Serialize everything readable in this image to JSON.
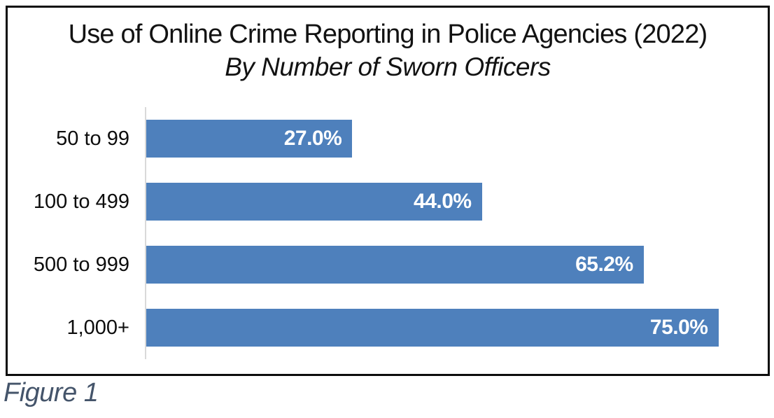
{
  "figure": {
    "caption": "Figure 1"
  },
  "colors": {
    "bar": "#4e80bc",
    "bar_label": "#ffffff",
    "axis_line": "#d9d9d9",
    "frame_border": "#0d0d0d",
    "caption_text": "#44546a",
    "title_text": "#121212"
  },
  "chart_data": {
    "type": "bar",
    "orientation": "horizontal",
    "title": "Use of Online Crime Reporting in Police Agencies (2022)",
    "subtitle": "By Number of Sworn Officers",
    "categories": [
      "50 to 99",
      "100 to 499",
      "500 to 999",
      "1,000+"
    ],
    "values": [
      27.0,
      44.0,
      65.2,
      75.0
    ],
    "labels": [
      "27.0%",
      "44.0%",
      "65.2%",
      "75.0%"
    ],
    "xlabel": "",
    "ylabel": "",
    "xlim": [
      0,
      80
    ],
    "grid": false,
    "legend": false,
    "data_labels": "inside-end"
  }
}
